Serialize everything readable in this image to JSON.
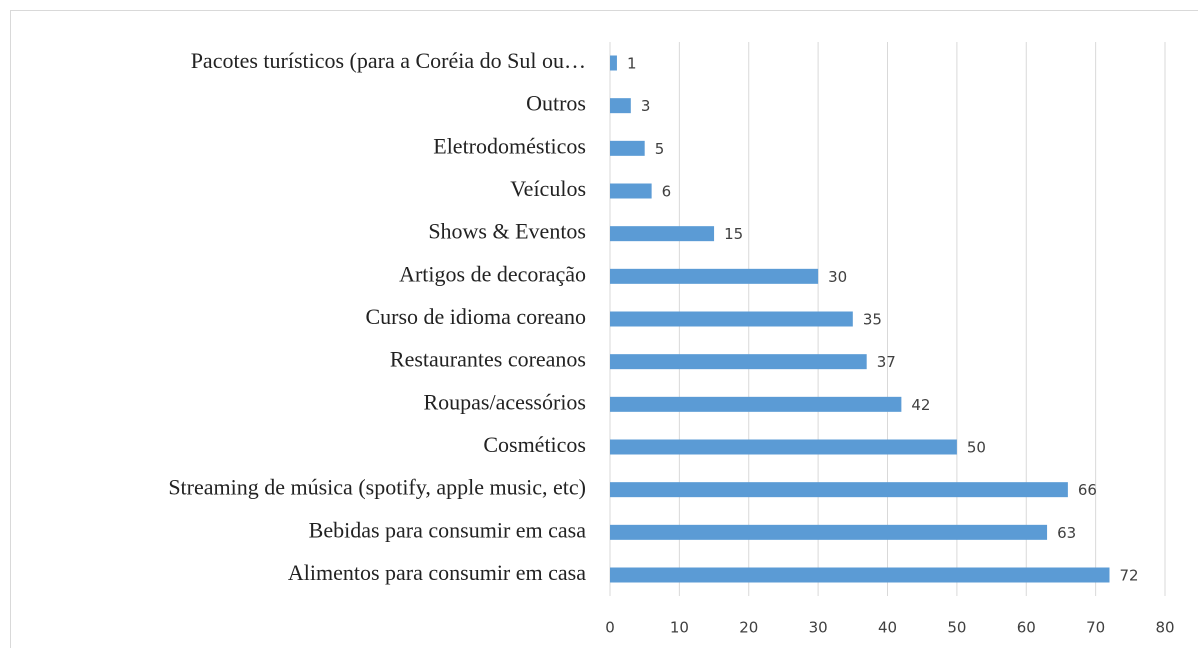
{
  "chart_data": {
    "type": "hbar",
    "categories": [
      "Pacotes turísticos (para a Coréia do Sul ou…",
      "Outros",
      "Eletrodomésticos",
      "Veículos",
      "Shows & Eventos",
      "Artigos de decoração",
      "Curso de idioma coreano",
      "Restaurantes coreanos",
      "Roupas/acessórios",
      "Cosméticos",
      "Streaming de música (spotify, apple music, etc)",
      "Bebidas para consumir em casa",
      "Alimentos para consumir em casa"
    ],
    "values": [
      1,
      3,
      5,
      6,
      15,
      30,
      35,
      37,
      42,
      50,
      66,
      63,
      72
    ],
    "color": "#5b9bd5",
    "xlim": [
      0,
      80
    ],
    "xticks": [
      0,
      10,
      20,
      30,
      40,
      50,
      60,
      70,
      80
    ],
    "grid": true
  }
}
